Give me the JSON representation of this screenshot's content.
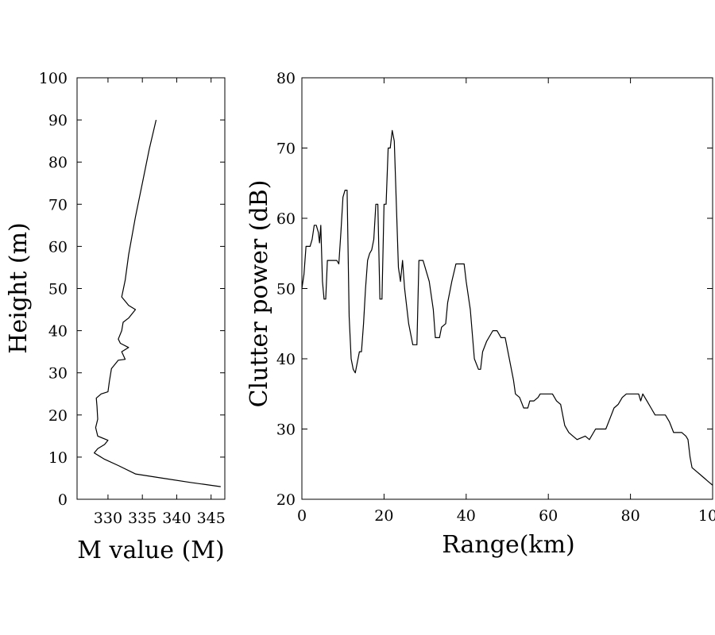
{
  "chart_data": [
    {
      "type": "line",
      "panel": "left",
      "title": "",
      "xlabel": "M value (M)",
      "ylabel": "Height (m)",
      "xlim": [
        325.5,
        347
      ],
      "ylim": [
        0,
        100
      ],
      "xticks": [
        330,
        335,
        340,
        345
      ],
      "yticks": [
        0,
        10,
        20,
        30,
        40,
        50,
        60,
        70,
        80,
        90,
        100
      ],
      "grid": false,
      "legend": "none",
      "series": [
        {
          "points": [
            [
              346.4,
              3
            ],
            [
              342.0,
              4
            ],
            [
              338.0,
              5
            ],
            [
              334.0,
              6
            ],
            [
              331.5,
              8
            ],
            [
              329.5,
              9.5
            ],
            [
              328.0,
              11
            ],
            [
              328.5,
              12
            ],
            [
              329.5,
              13
            ],
            [
              330.0,
              14
            ],
            [
              328.5,
              15
            ],
            [
              328.2,
              17
            ],
            [
              328.5,
              19
            ],
            [
              328.4,
              22
            ],
            [
              328.3,
              24
            ],
            [
              329.0,
              25
            ],
            [
              330.0,
              25.5
            ],
            [
              330.2,
              28
            ],
            [
              330.5,
              31
            ],
            [
              331.0,
              32
            ],
            [
              331.5,
              33
            ],
            [
              332.5,
              33.2
            ],
            [
              332.0,
              35
            ],
            [
              333.0,
              36
            ],
            [
              331.8,
              37
            ],
            [
              331.5,
              38
            ],
            [
              332.0,
              40
            ],
            [
              332.2,
              42
            ],
            [
              333.0,
              43
            ],
            [
              334.0,
              45
            ],
            [
              333.0,
              46
            ],
            [
              332.0,
              48
            ],
            [
              332.5,
              52
            ],
            [
              333.0,
              58
            ],
            [
              334.0,
              67
            ],
            [
              335.0,
              75
            ],
            [
              336.0,
              83
            ],
            [
              337.0,
              90
            ]
          ]
        }
      ]
    },
    {
      "type": "line",
      "panel": "right",
      "title": "",
      "xlabel": "Range(km)",
      "ylabel": "Clutter power (dB)",
      "xlim": [
        0,
        100
      ],
      "ylim": [
        20,
        80
      ],
      "xticks": [
        0,
        20,
        40,
        60,
        80,
        100
      ],
      "yticks": [
        20,
        30,
        40,
        50,
        60,
        70,
        80
      ],
      "grid": false,
      "legend": "none",
      "series": [
        {
          "points": [
            [
              0,
              50
            ],
            [
              0.5,
              52
            ],
            [
              1,
              56
            ],
            [
              2,
              56
            ],
            [
              2.5,
              57
            ],
            [
              3,
              59
            ],
            [
              3.5,
              59
            ],
            [
              4,
              58
            ],
            [
              4.3,
              56.5
            ],
            [
              4.6,
              59
            ],
            [
              5,
              51
            ],
            [
              5.4,
              48.5
            ],
            [
              5.8,
              48.5
            ],
            [
              6.2,
              54
            ],
            [
              7,
              54
            ],
            [
              8.5,
              54
            ],
            [
              9,
              53.5
            ],
            [
              9.5,
              58
            ],
            [
              10,
              63
            ],
            [
              10.5,
              64
            ],
            [
              11,
              64
            ],
            [
              11.5,
              46
            ],
            [
              12,
              40
            ],
            [
              12.5,
              38.5
            ],
            [
              13,
              38
            ],
            [
              13.5,
              39.5
            ],
            [
              14,
              41
            ],
            [
              14.5,
              41
            ],
            [
              15,
              45
            ],
            [
              15.5,
              50
            ],
            [
              16,
              54
            ],
            [
              16.5,
              55
            ],
            [
              17,
              55.5
            ],
            [
              17.5,
              57
            ],
            [
              18,
              62
            ],
            [
              18.5,
              62
            ],
            [
              19,
              48.5
            ],
            [
              19.5,
              48.5
            ],
            [
              20,
              62
            ],
            [
              20.5,
              62
            ],
            [
              21,
              70
            ],
            [
              21.5,
              70
            ],
            [
              22,
              72.5
            ],
            [
              22.5,
              71
            ],
            [
              23,
              62
            ],
            [
              23.5,
              53
            ],
            [
              24,
              51
            ],
            [
              24.5,
              54
            ],
            [
              25,
              50
            ],
            [
              26,
              45
            ],
            [
              27,
              42
            ],
            [
              28,
              42
            ],
            [
              28.5,
              54
            ],
            [
              29.5,
              54
            ],
            [
              31,
              51
            ],
            [
              32,
              47
            ],
            [
              32.5,
              43
            ],
            [
              33,
              43
            ],
            [
              33.5,
              43
            ],
            [
              34,
              44.5
            ],
            [
              35,
              45
            ],
            [
              35.5,
              48
            ],
            [
              36.5,
              51
            ],
            [
              37.5,
              53.5
            ],
            [
              39.5,
              53.5
            ],
            [
              40,
              51
            ],
            [
              41,
              47
            ],
            [
              42,
              40
            ],
            [
              43,
              38.5
            ],
            [
              43.5,
              38.5
            ],
            [
              44,
              41
            ],
            [
              45,
              42.5
            ],
            [
              46,
              43.5
            ],
            [
              46.5,
              44
            ],
            [
              47.5,
              44
            ],
            [
              48.5,
              43
            ],
            [
              49.5,
              43
            ],
            [
              50.5,
              40
            ],
            [
              51.5,
              37
            ],
            [
              52,
              35
            ],
            [
              53,
              34.5
            ],
            [
              54,
              33
            ],
            [
              55,
              33
            ],
            [
              55.5,
              34
            ],
            [
              56.5,
              34
            ],
            [
              57.5,
              34.5
            ],
            [
              58,
              35
            ],
            [
              61,
              35
            ],
            [
              62,
              34
            ],
            [
              63,
              33.5
            ],
            [
              64,
              30.5
            ],
            [
              65,
              29.5
            ],
            [
              66,
              29
            ],
            [
              67,
              28.5
            ],
            [
              69,
              29
            ],
            [
              70,
              28.5
            ],
            [
              71.5,
              30
            ],
            [
              74,
              30
            ],
            [
              75,
              31.5
            ],
            [
              76,
              33
            ],
            [
              77,
              33.5
            ],
            [
              78,
              34.5
            ],
            [
              79,
              35
            ],
            [
              82,
              35
            ],
            [
              82.5,
              34
            ],
            [
              83,
              35
            ],
            [
              84,
              34
            ],
            [
              85,
              33
            ],
            [
              86,
              32
            ],
            [
              88.5,
              32
            ],
            [
              89.5,
              31
            ],
            [
              90.5,
              29.5
            ],
            [
              92.5,
              29.5
            ],
            [
              93.5,
              29
            ],
            [
              94,
              28.5
            ],
            [
              94.5,
              26
            ],
            [
              95,
              24.5
            ],
            [
              96,
              24
            ],
            [
              97,
              23.5
            ],
            [
              98,
              23
            ],
            [
              99,
              22.5
            ],
            [
              100,
              22
            ]
          ]
        }
      ]
    }
  ]
}
